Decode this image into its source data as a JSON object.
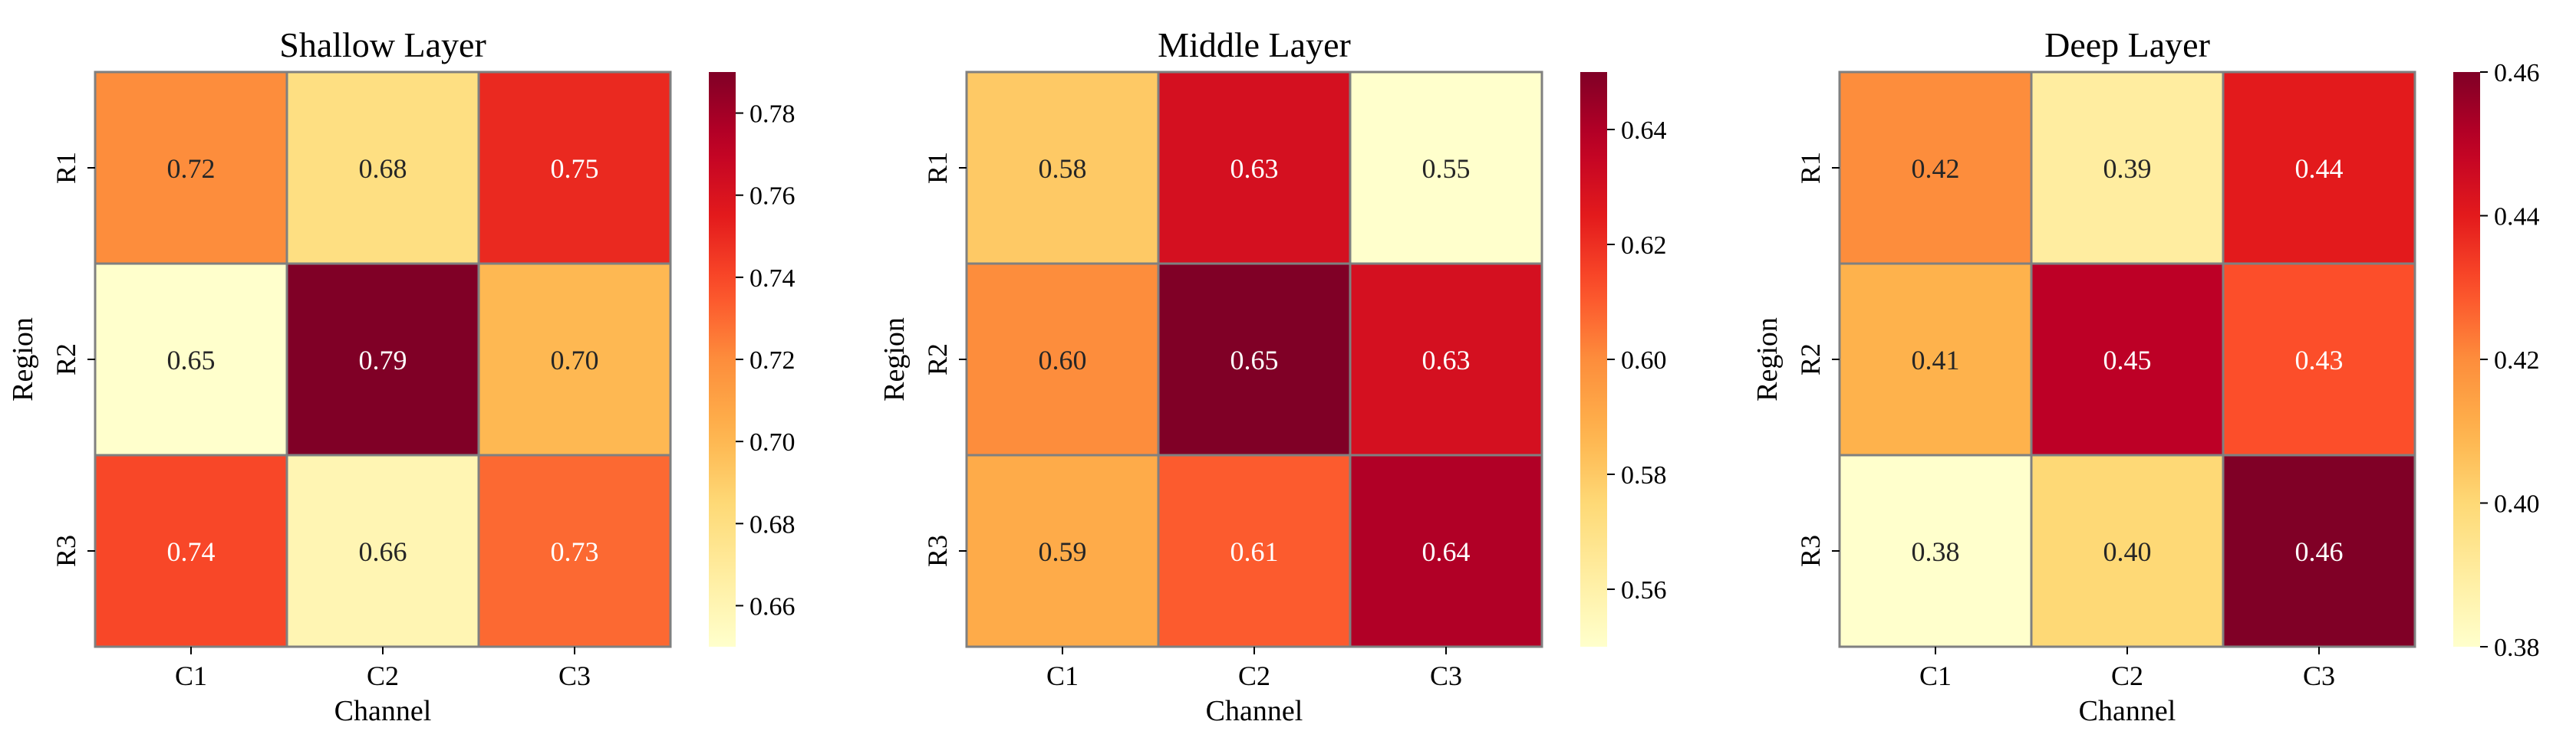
{
  "chart_data": [
    {
      "type": "heatmap",
      "title": "Shallow Layer",
      "xlabel": "Channel",
      "ylabel": "Region",
      "x_categories": [
        "C1",
        "C2",
        "C3"
      ],
      "y_categories": [
        "R1",
        "R2",
        "R3"
      ],
      "values": [
        [
          0.72,
          0.68,
          0.75
        ],
        [
          0.65,
          0.79,
          0.7
        ],
        [
          0.74,
          0.66,
          0.73
        ]
      ],
      "value_labels": [
        [
          "0.72",
          "0.68",
          "0.75"
        ],
        [
          "0.65",
          "0.79",
          "0.70"
        ],
        [
          "0.74",
          "0.66",
          "0.73"
        ]
      ],
      "colorbar": {
        "range": [
          0.65,
          0.79
        ],
        "ticks": [
          0.66,
          0.68,
          0.7,
          0.72,
          0.74,
          0.76,
          0.78
        ],
        "tick_labels": [
          "0.66",
          "0.68",
          "0.70",
          "0.72",
          "0.74",
          "0.76",
          "0.78"
        ]
      },
      "colormap": "YlOrRd",
      "grid": false
    },
    {
      "type": "heatmap",
      "title": "Middle Layer",
      "xlabel": "Channel",
      "ylabel": "Region",
      "x_categories": [
        "C1",
        "C2",
        "C3"
      ],
      "y_categories": [
        "R1",
        "R2",
        "R3"
      ],
      "values": [
        [
          0.58,
          0.63,
          0.55
        ],
        [
          0.6,
          0.65,
          0.63
        ],
        [
          0.59,
          0.61,
          0.64
        ]
      ],
      "value_labels": [
        [
          "0.58",
          "0.63",
          "0.55"
        ],
        [
          "0.60",
          "0.65",
          "0.63"
        ],
        [
          "0.59",
          "0.61",
          "0.64"
        ]
      ],
      "colorbar": {
        "range": [
          0.55,
          0.65
        ],
        "ticks": [
          0.56,
          0.58,
          0.6,
          0.62,
          0.64
        ],
        "tick_labels": [
          "0.56",
          "0.58",
          "0.60",
          "0.62",
          "0.64"
        ]
      },
      "colormap": "YlOrRd",
      "grid": false
    },
    {
      "type": "heatmap",
      "title": "Deep Layer",
      "xlabel": "Channel",
      "ylabel": "Region",
      "x_categories": [
        "C1",
        "C2",
        "C3"
      ],
      "y_categories": [
        "R1",
        "R2",
        "R3"
      ],
      "values": [
        [
          0.42,
          0.39,
          0.44
        ],
        [
          0.41,
          0.45,
          0.43
        ],
        [
          0.38,
          0.4,
          0.46
        ]
      ],
      "value_labels": [
        [
          "0.42",
          "0.39",
          "0.44"
        ],
        [
          "0.41",
          "0.45",
          "0.43"
        ],
        [
          "0.38",
          "0.40",
          "0.46"
        ]
      ],
      "colorbar": {
        "range": [
          0.38,
          0.46
        ],
        "ticks": [
          0.38,
          0.4,
          0.42,
          0.44,
          0.46
        ],
        "tick_labels": [
          "0.38",
          "0.40",
          "0.42",
          "0.44",
          "0.46"
        ]
      },
      "colormap": "YlOrRd",
      "grid": false
    }
  ]
}
